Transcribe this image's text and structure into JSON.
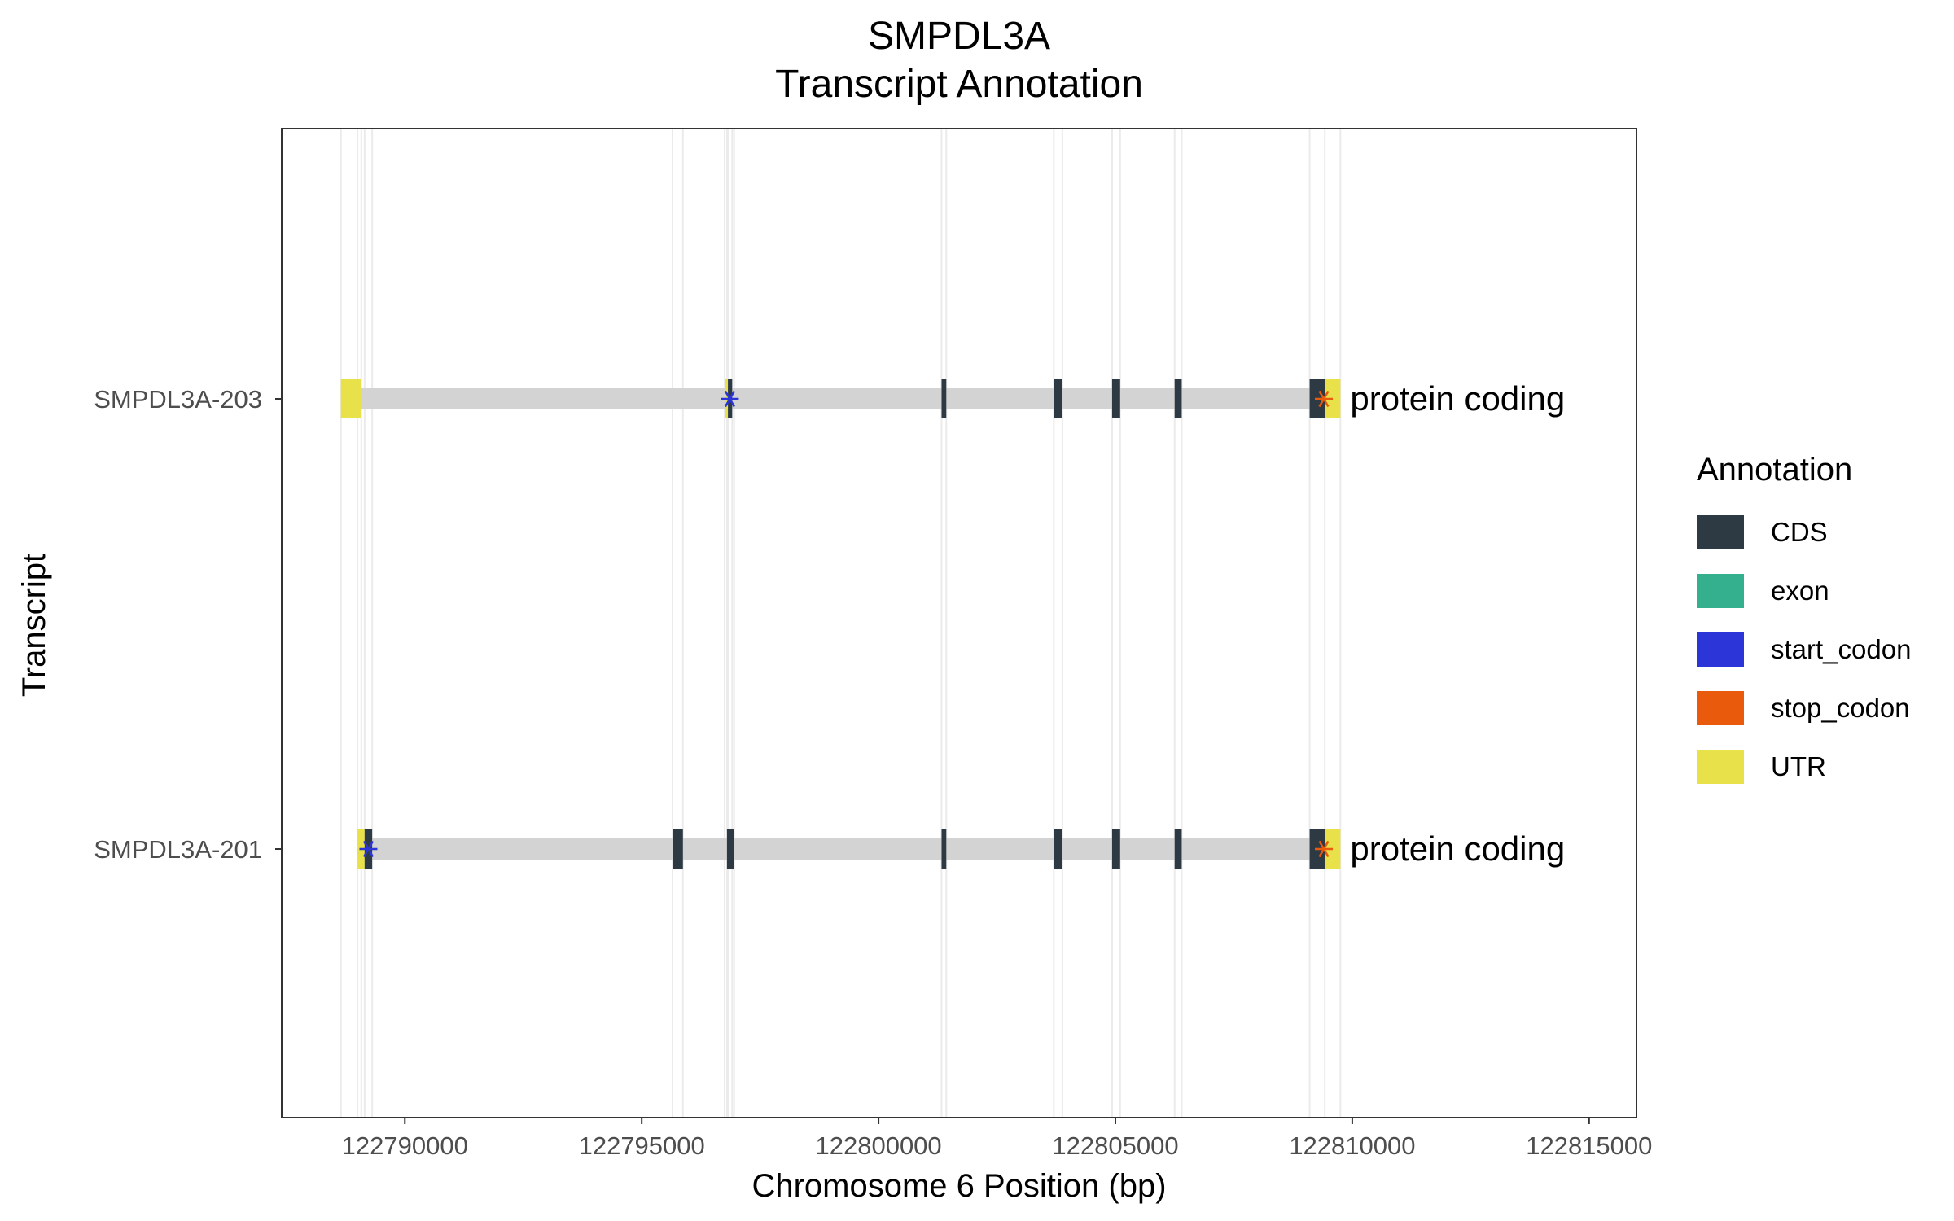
{
  "chart_data": {
    "type": "gene_transcript_annotation",
    "title": "SMPDL3A",
    "subtitle": "Transcript Annotation",
    "xlabel": "Chromosome 6 Position (bp)",
    "ylabel": "Transcript",
    "xlim": [
      122787400,
      122816000
    ],
    "x_ticks": [
      122790000,
      122795000,
      122800000,
      122805000,
      122810000,
      122815000
    ],
    "x_tick_labels": [
      "122790000",
      "122795000",
      "122800000",
      "122805000",
      "122810000",
      "122815000"
    ],
    "grid": "vertical lines at feature boundaries",
    "legend": {
      "title": "Annotation",
      "position": "right",
      "items": [
        {
          "label": "CDS",
          "color": "#2e3a43"
        },
        {
          "label": "exon",
          "color": "#35b08f"
        },
        {
          "label": "start_codon",
          "color": "#2b35d8"
        },
        {
          "label": "stop_codon",
          "color": "#ea5a0c"
        },
        {
          "label": "UTR",
          "color": "#e9e149"
        }
      ]
    },
    "intron_color": "#d3d3d3",
    "transcripts": [
      {
        "name": "SMPDL3A-203",
        "biotype": "protein coding",
        "start": 122788650,
        "end": 122809750,
        "utr": [
          [
            122788650,
            122789080
          ],
          [
            122796750,
            122796820
          ],
          [
            122809420,
            122809750
          ]
        ],
        "cds": [
          [
            122796820,
            122796910
          ],
          [
            122801330,
            122801430
          ],
          [
            122803700,
            122803880
          ],
          [
            122804930,
            122805100
          ],
          [
            122806250,
            122806400
          ],
          [
            122809100,
            122809420
          ]
        ],
        "start_codon": 122796860,
        "stop_codon": 122809400
      },
      {
        "name": "SMPDL3A-201",
        "biotype": "protein coding",
        "start": 122789000,
        "end": 122809750,
        "utr": [
          [
            122789000,
            122789150
          ],
          [
            122809420,
            122809750
          ]
        ],
        "cds": [
          [
            122789150,
            122789310
          ],
          [
            122795650,
            122795870
          ],
          [
            122796800,
            122796950
          ],
          [
            122801330,
            122801430
          ],
          [
            122803700,
            122803880
          ],
          [
            122804930,
            122805100
          ],
          [
            122806250,
            122806400
          ],
          [
            122809100,
            122809420
          ]
        ],
        "start_codon": 122789230,
        "stop_codon": 122809400
      }
    ]
  }
}
